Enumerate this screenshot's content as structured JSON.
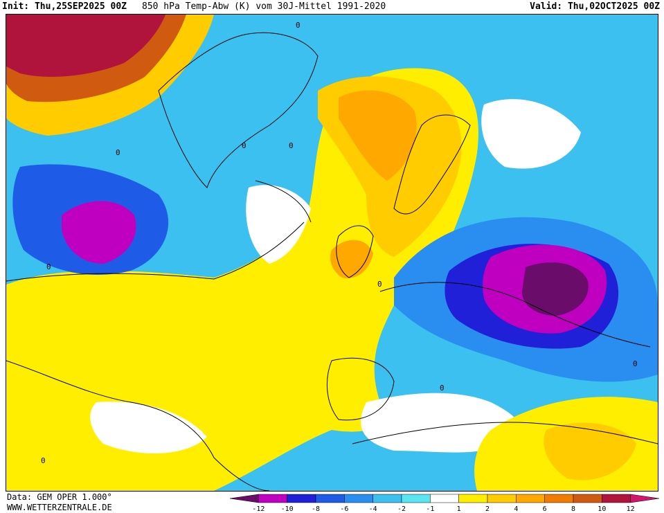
{
  "header": {
    "init": "Init: Thu,25SEP2025 00Z",
    "title": "850 hPa Temp-Abw (K) vom 30J-Mittel 1991-2020",
    "valid": "Valid: Thu,02OCT2025 00Z"
  },
  "footer": {
    "data_source": "Data: GEM OPER 1.000°",
    "website": "WWW.WETTERZENTRALE.DE"
  },
  "map": {
    "region": "North Atlantic / Europe",
    "contour_labels": [
      "0",
      "0",
      "0",
      "0",
      "0",
      "0",
      "0",
      "0",
      "0"
    ]
  },
  "colorbar": {
    "tick_labels": [
      "-12",
      "-10",
      "-8",
      "-6",
      "-4",
      "-2",
      "-1",
      "1",
      "2",
      "4",
      "6",
      "8",
      "10",
      "12"
    ],
    "colors": [
      "#6a0d6a",
      "#c000c0",
      "#2020d8",
      "#1e5ce8",
      "#2a8ef0",
      "#3cc0f0",
      "#5ae6f0",
      "#ffffff",
      "#ffee00",
      "#ffcc00",
      "#ffa800",
      "#f07c00",
      "#d05a10",
      "#b0143c",
      "#d4146c"
    ]
  }
}
